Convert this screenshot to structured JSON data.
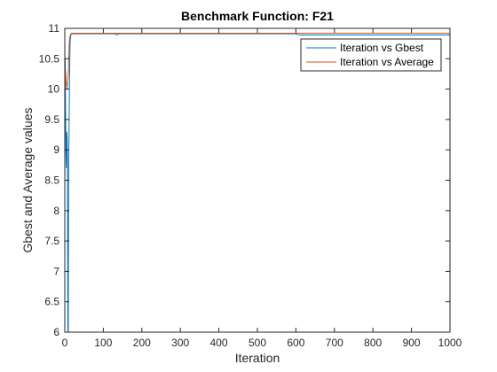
{
  "chart_data": {
    "type": "line",
    "title": "Benchmark Function: F21",
    "xlabel": "Iteration",
    "ylabel": "Gbest and Average values",
    "xlim": [
      0,
      1000
    ],
    "ylim": [
      6,
      11
    ],
    "xticks": [
      0,
      100,
      200,
      300,
      400,
      500,
      600,
      700,
      800,
      900,
      1000
    ],
    "yticks": [
      6,
      6.5,
      7,
      7.5,
      8,
      8.5,
      9,
      9.5,
      10,
      10.5,
      11
    ],
    "ytick_labels": [
      "6",
      "6.5",
      "7",
      "7.5",
      "8",
      "8.5",
      "9",
      "9.5",
      "10",
      "10.5",
      "11"
    ],
    "grid": false,
    "legend_position": "top-right",
    "series": [
      {
        "name": "Iteration vs Gbest",
        "color": "#0072BD",
        "x": [
          1,
          2,
          3,
          4,
          5,
          6,
          7,
          8,
          9,
          10,
          11,
          12,
          13,
          14,
          15,
          16,
          18,
          20,
          25,
          30,
          50,
          100,
          130,
          135,
          140,
          200,
          300,
          400,
          480,
          600,
          610,
          620,
          700,
          800,
          900,
          1000
        ],
        "y": [
          10.5,
          9.6,
          9.0,
          8.7,
          9.3,
          9.2,
          8.7,
          6.0,
          6.0,
          8.8,
          9.2,
          10.0,
          10.5,
          10.8,
          10.85,
          10.9,
          10.91,
          10.91,
          10.91,
          10.91,
          10.91,
          10.91,
          10.91,
          10.89,
          10.91,
          10.91,
          10.91,
          10.91,
          10.91,
          10.91,
          10.89,
          10.89,
          10.89,
          10.89,
          10.89,
          10.89
        ]
      },
      {
        "name": "Iteration vs Average",
        "color": "#D95319",
        "x": [
          1,
          2,
          3,
          4,
          5,
          6,
          7,
          8,
          9,
          10,
          11,
          12,
          14,
          16,
          18,
          20,
          25,
          30,
          50,
          100,
          200,
          300,
          400,
          500,
          600,
          700,
          800,
          900,
          1000
        ],
        "y": [
          10.1,
          10.3,
          10.15,
          10.1,
          10.05,
          10.0,
          10.1,
          10.2,
          10.25,
          10.45,
          10.65,
          10.8,
          10.88,
          10.91,
          10.92,
          10.92,
          10.92,
          10.92,
          10.92,
          10.92,
          10.92,
          10.92,
          10.92,
          10.92,
          10.92,
          10.92,
          10.92,
          10.92,
          10.92
        ]
      }
    ]
  }
}
